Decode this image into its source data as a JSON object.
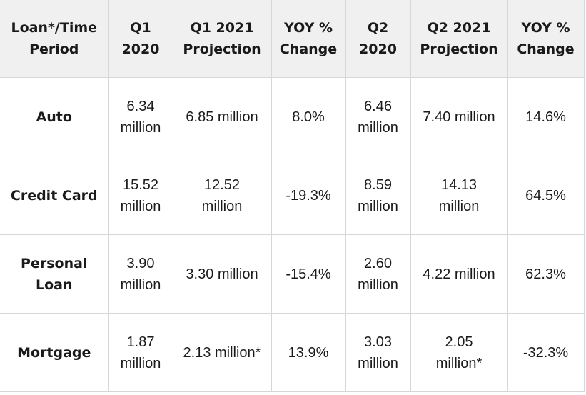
{
  "table": {
    "headers": [
      "Loan*/Time\nPeriod",
      "Q1\n2020",
      "Q1 2021\nProjection",
      "YOY %\nChange",
      "Q2\n2020",
      "Q2 2021\nProjection",
      "YOY %\nChange"
    ],
    "rows": [
      [
        "Auto",
        "6.34\nmillion",
        "6.85 million",
        "8.0%",
        "6.46\nmillion",
        "7.40 million",
        "14.6%"
      ],
      [
        "Credit Card",
        "15.52\nmillion",
        "12.52\nmillion",
        "-19.3%",
        "8.59\nmillion",
        "14.13\nmillion",
        "64.5%"
      ],
      [
        "Personal\nLoan",
        "3.90\nmillion",
        "3.30 million",
        "-15.4%",
        "2.60\nmillion",
        "4.22 million",
        "62.3%"
      ],
      [
        "Mortgage",
        "1.87\nmillion",
        "2.13 million*",
        "13.9%",
        "3.03\nmillion",
        "2.05\nmillion*",
        "-32.3%"
      ]
    ]
  }
}
